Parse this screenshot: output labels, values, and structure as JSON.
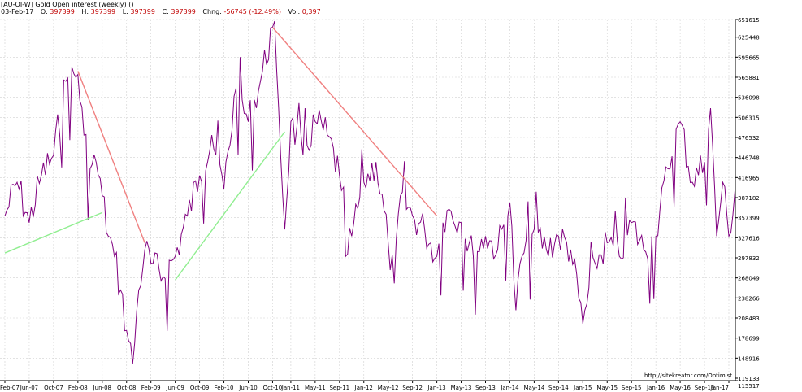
{
  "header": {
    "title": "[AU-OI-W] Gold Open interest (weekly) ()",
    "date": "03-Feb-17",
    "o_label": "O:",
    "o_value": "397399",
    "h_label": "H:",
    "h_value": "397399",
    "l_label": "L:",
    "l_value": "397399",
    "c_label": "C:",
    "c_value": "397399",
    "chng_label": "Chng:",
    "chng_value": "-56745 (-12.49%)",
    "vol_label": "Vol:",
    "vol_value": "0,397"
  },
  "watermark": "http://sitekreator.com/Optimist",
  "colors": {
    "series": "#800080",
    "down_trend": "#f08080",
    "up_trend": "#90ee90",
    "grid": "#d0d0d0",
    "axis": "#000000",
    "header_values": "#c00000"
  },
  "chart_data": {
    "type": "line",
    "title": "[AU-OI-W] Gold Open interest (weekly) ()",
    "xlabel": "",
    "ylabel": "",
    "x_tick_labels": [
      "Feb-07",
      "Jun-07",
      "Oct-07",
      "Feb-08",
      "Jun-08",
      "Oct-08",
      "Feb-09",
      "Jun-09",
      "Oct-09",
      "Feb-10",
      "Jun-10",
      "Oct-10",
      "Jan-11",
      "May-11",
      "Sep-11",
      "Jan-12",
      "May-12",
      "Sep-12",
      "Jan-13",
      "May-13",
      "Sep-13",
      "Jan-14",
      "May-14",
      "Sep-14",
      "Jan-15",
      "May-15",
      "Sep-15",
      "Jan-16",
      "May-16",
      "Sep-16",
      "Jan-17"
    ],
    "y_tick_labels": [
      "651615",
      "625448",
      "595665",
      "565881",
      "536098",
      "506315",
      "476532",
      "446748",
      "416965",
      "387182",
      "357399",
      "327616",
      "297832",
      "268049",
      "238266",
      "208483",
      "178699",
      "148916",
      "119133",
      "115517"
    ],
    "ylim": [
      115517,
      651615
    ],
    "grid": true,
    "series": [
      {
        "x": [
          "Feb-07",
          "Apr-07",
          "Jun-07",
          "Aug-07",
          "Oct-07",
          "Dec-07",
          "Feb-08",
          "Mar-08",
          "Apr-08",
          "May-08",
          "Jun-08",
          "Jul-08",
          "Aug-08",
          "Sep-08",
          "Oct-08",
          "Nov-08",
          "Dec-08",
          "Jan-09",
          "Feb-09",
          "Apr-09",
          "Jun-09",
          "Aug-09",
          "Oct-09",
          "Dec-09",
          "Feb-10",
          "Apr-10",
          "Jun-10",
          "Aug-10",
          "Oct-10",
          "Nov-10",
          "Dec-10",
          "Jan-11",
          "Mar-11",
          "May-11",
          "Jul-11",
          "Sep-11",
          "Oct-11",
          "Nov-11",
          "Jan-12",
          "Mar-12",
          "May-12",
          "Jun-12",
          "Jul-12",
          "Sep-12",
          "Nov-12",
          "Jan-13",
          "Feb-13",
          "Mar-13",
          "May-13",
          "Jul-13",
          "Sep-13",
          "Nov-13",
          "Jan-14",
          "Feb-14",
          "Mar-14",
          "May-14",
          "Jul-14",
          "Sep-14",
          "Nov-14",
          "Jan-15",
          "Mar-15",
          "May-15",
          "Jul-15",
          "Sep-15",
          "Nov-15",
          "Jan-16",
          "Mar-16",
          "May-16",
          "Jul-16",
          "Sep-16",
          "Oct-16",
          "Nov-16",
          "Dec-16",
          "Jan-17",
          "Feb-17"
        ],
        "y": [
          360000,
          410000,
          350000,
          420000,
          450000,
          560000,
          570000,
          480000,
          430000,
          440000,
          390000,
          330000,
          300000,
          250000,
          190000,
          140000,
          250000,
          310000,
          290000,
          270000,
          300000,
          360000,
          420000,
          480000,
          400000,
          550000,
          500000,
          560000,
          640000,
          520000,
          340000,
          500000,
          450000,
          500000,
          480000,
          420000,
          300000,
          330000,
          410000,
          440000,
          320000,
          260000,
          390000,
          360000,
          340000,
          300000,
          350000,
          370000,
          350000,
          300000,
          330000,
          310000,
          380000,
          220000,
          300000,
          340000,
          310000,
          330000,
          310000,
          200000,
          290000,
          320000,
          300000,
          350000,
          310000,
          330000,
          430000,
          500000,
          410000,
          440000,
          520000,
          330000,
          410000,
          330000,
          397399
        ]
      }
    ],
    "trend_lines": [
      {
        "color": "down",
        "x": [
          "Feb-08",
          "Jan-09"
        ],
        "y": [
          575000,
          320000
        ]
      },
      {
        "color": "down",
        "x": [
          "Oct-10",
          "Jan-13"
        ],
        "y": [
          640000,
          360000
        ]
      },
      {
        "color": "up",
        "x": [
          "Feb-07",
          "Jun-08"
        ],
        "y": [
          305000,
          365000
        ]
      },
      {
        "color": "up",
        "x": [
          "Jun-09",
          "Dec-10"
        ],
        "y": [
          265000,
          485000
        ]
      }
    ]
  }
}
